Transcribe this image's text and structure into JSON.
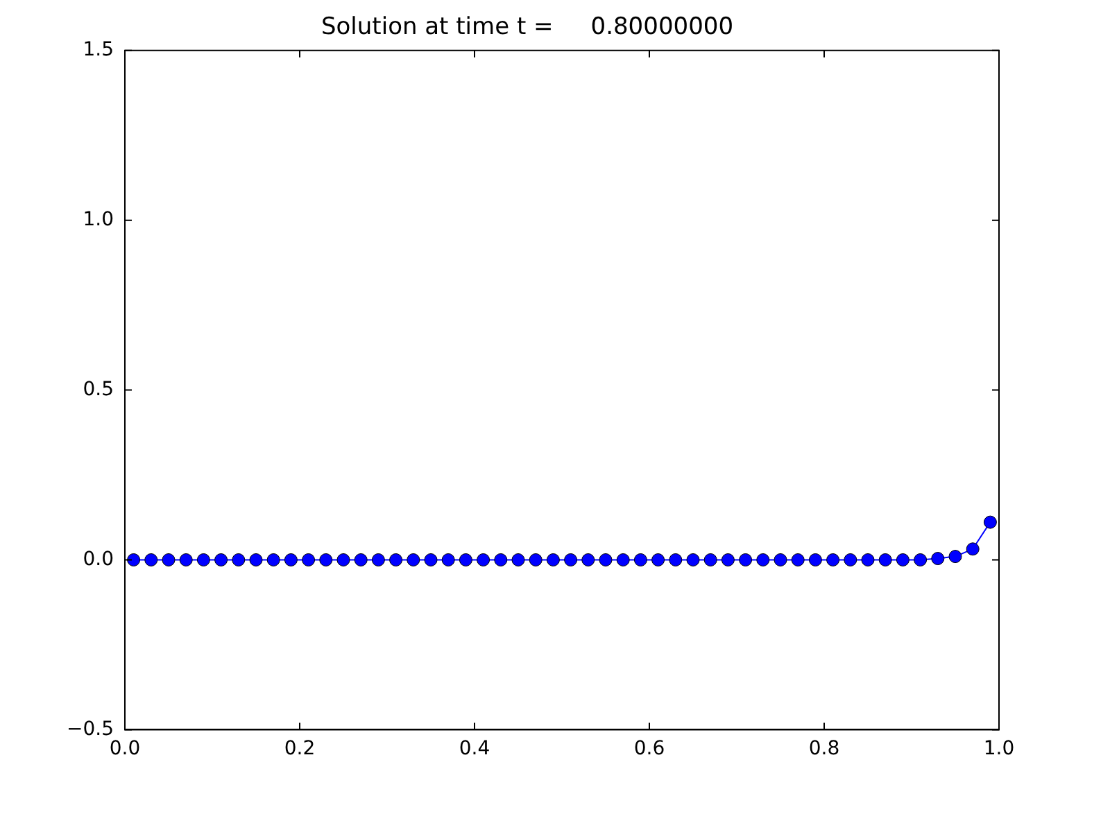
{
  "chart_data": {
    "type": "line",
    "title": "Solution at time t =     0.80000000",
    "x": [
      0.01,
      0.03,
      0.05,
      0.07,
      0.09,
      0.11,
      0.13,
      0.15,
      0.17,
      0.19,
      0.21,
      0.23,
      0.25,
      0.27,
      0.29,
      0.31,
      0.33,
      0.35,
      0.37,
      0.39,
      0.41,
      0.43,
      0.45,
      0.47,
      0.49,
      0.51,
      0.53,
      0.55,
      0.57,
      0.59,
      0.61,
      0.63,
      0.65,
      0.67,
      0.69,
      0.71,
      0.73,
      0.75,
      0.77,
      0.79,
      0.81,
      0.83,
      0.85,
      0.87,
      0.89,
      0.91,
      0.93,
      0.95,
      0.97,
      0.99
    ],
    "series": [
      {
        "color": "#0000ff",
        "values": [
          0,
          0,
          0,
          0,
          0,
          0,
          0,
          0,
          0,
          0,
          0,
          0,
          0,
          0,
          0,
          0,
          0,
          0,
          0,
          0,
          0,
          0,
          0,
          0,
          0,
          0,
          0,
          0,
          0,
          0,
          0,
          0,
          0,
          0,
          0,
          0,
          0,
          0,
          0,
          0,
          0,
          0,
          0,
          0,
          0,
          0,
          0.004,
          0.01,
          0.032,
          0.111
        ]
      }
    ],
    "xlim": [
      0,
      1
    ],
    "xticks": [
      {
        "value": 0,
        "label": "0.0"
      },
      {
        "value": 0.2,
        "label": "0.2"
      },
      {
        "value": 0.4,
        "label": "0.4"
      },
      {
        "value": 0.6,
        "label": "0.6"
      },
      {
        "value": 0.8,
        "label": "0.8"
      },
      {
        "value": 1,
        "label": "1.0"
      }
    ],
    "ylim": [
      -0.5,
      1.5
    ],
    "yticks": [
      {
        "value": -0.5,
        "label": "−0.5"
      },
      {
        "value": 0,
        "label": "0.0"
      },
      {
        "value": 0.5,
        "label": "0.5"
      },
      {
        "value": 1,
        "label": "1.0"
      },
      {
        "value": 1.5,
        "label": "1.5"
      }
    ],
    "grid": false,
    "legend": false,
    "marker": "circle",
    "line_style": "solid"
  }
}
